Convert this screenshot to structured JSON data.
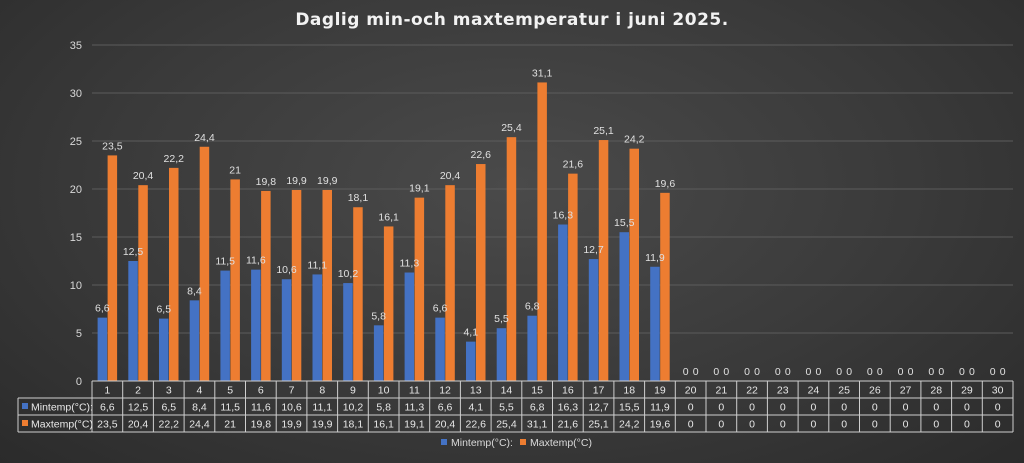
{
  "chart_data": {
    "type": "bar",
    "title": "Daglig min-och maxtemperatur i juni 2025.",
    "categories": [
      "1",
      "2",
      "3",
      "4",
      "5",
      "6",
      "7",
      "8",
      "9",
      "10",
      "11",
      "12",
      "13",
      "14",
      "15",
      "16",
      "17",
      "18",
      "19",
      "20",
      "21",
      "22",
      "23",
      "24",
      "25",
      "26",
      "27",
      "28",
      "29",
      "30"
    ],
    "series": [
      {
        "name": "Mintemp(°C):",
        "color": "#4472c4",
        "values": [
          6.6,
          12.5,
          6.5,
          8.4,
          11.5,
          11.6,
          10.6,
          11.1,
          10.2,
          5.8,
          11.3,
          6.6,
          4.1,
          5.5,
          6.8,
          16.3,
          12.7,
          15.5,
          11.9,
          0,
          0,
          0,
          0,
          0,
          0,
          0,
          0,
          0,
          0,
          0
        ],
        "labels": [
          "6,6",
          "12,5",
          "6,5",
          "8,4",
          "11,5",
          "11,6",
          "10,6",
          "11,1",
          "10,2",
          "5,8",
          "11,3",
          "6,6",
          "4,1",
          "5,5",
          "6,8",
          "16,3",
          "12,7",
          "15,5",
          "11,9",
          "0",
          "0",
          "0",
          "0",
          "0",
          "0",
          "0",
          "0",
          "0",
          "0",
          "0"
        ]
      },
      {
        "name": "Maxtemp(°C)",
        "color": "#ed7d31",
        "values": [
          23.5,
          20.4,
          22.2,
          24.4,
          21,
          19.8,
          19.9,
          19.9,
          18.1,
          16.1,
          19.1,
          20.4,
          22.6,
          25.4,
          31.1,
          21.6,
          25.1,
          24.2,
          19.6,
          0,
          0,
          0,
          0,
          0,
          0,
          0,
          0,
          0,
          0,
          0
        ],
        "labels": [
          "23,5",
          "20,4",
          "22,2",
          "24,4",
          "21",
          "19,8",
          "19,9",
          "19,9",
          "18,1",
          "16,1",
          "19,1",
          "20,4",
          "22,6",
          "25,4",
          "31,1",
          "21,6",
          "25,1",
          "24,2",
          "19,6",
          "0",
          "0",
          "0",
          "0",
          "0",
          "0",
          "0",
          "0",
          "0",
          "0",
          "0"
        ]
      }
    ],
    "yticks": [
      "0",
      "5",
      "10",
      "15",
      "20",
      "25",
      "30",
      "35"
    ],
    "ylim": [
      0,
      35
    ],
    "grid": true,
    "legend": "bottom",
    "data_table": true
  }
}
